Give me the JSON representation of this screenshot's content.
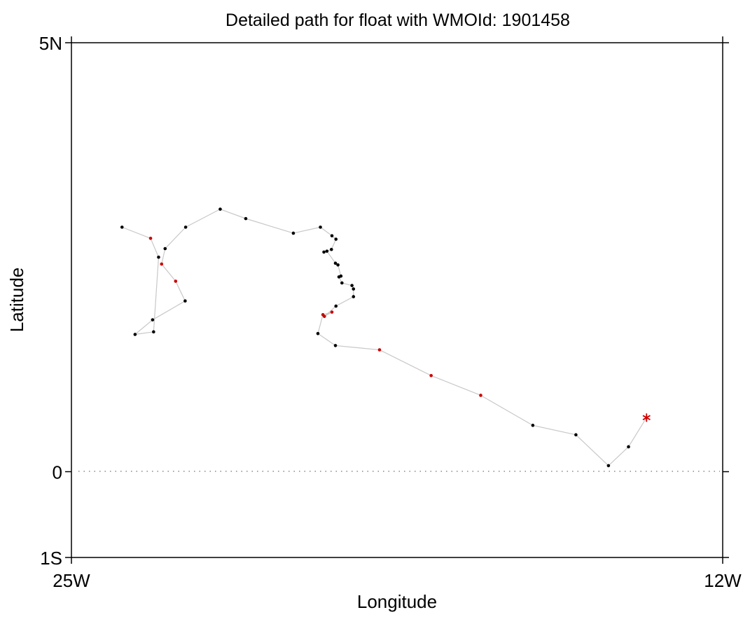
{
  "chart_data": {
    "type": "scatter",
    "title": "Detailed path for float with WMOId: 1901458",
    "xlabel": "Longitude",
    "ylabel": "Latitude",
    "xlim": [
      -25,
      -12
    ],
    "ylim": [
      -1,
      5
    ],
    "x_ticks": [
      {
        "value": -25,
        "label": "25W"
      },
      {
        "value": -12,
        "label": "12W"
      }
    ],
    "y_ticks": [
      {
        "value": 5,
        "label": "5N"
      },
      {
        "value": 0,
        "label": "0"
      },
      {
        "value": -1,
        "label": "1S"
      }
    ],
    "reference_line": {
      "y": 0,
      "style": "dotted"
    },
    "colors": {
      "path_line": "#c8c8c8",
      "profile_point": "#000000",
      "highlight_point": "#cc0000",
      "start_marker": "#cc0000",
      "axes": "#000000",
      "reference_line": "#888888"
    },
    "start_marker": {
      "lon": -13.52,
      "lat": 0.63,
      "symbol": "asterisk"
    },
    "path": [
      {
        "lon": -13.52,
        "lat": 0.63,
        "flag": "start"
      },
      {
        "lon": -13.88,
        "lat": 0.29,
        "flag": "normal"
      },
      {
        "lon": -14.28,
        "lat": 0.07,
        "flag": "normal"
      },
      {
        "lon": -14.93,
        "lat": 0.43,
        "flag": "normal"
      },
      {
        "lon": -15.79,
        "lat": 0.54,
        "flag": "normal"
      },
      {
        "lon": -16.83,
        "lat": 0.89,
        "flag": "highlight"
      },
      {
        "lon": -17.82,
        "lat": 1.12,
        "flag": "highlight"
      },
      {
        "lon": -18.85,
        "lat": 1.42,
        "flag": "highlight"
      },
      {
        "lon": -19.73,
        "lat": 1.47,
        "flag": "normal"
      },
      {
        "lon": -20.08,
        "lat": 1.61,
        "flag": "normal"
      },
      {
        "lon": -19.98,
        "lat": 1.83,
        "flag": "highlight"
      },
      {
        "lon": -19.8,
        "lat": 1.86,
        "flag": "highlight"
      },
      {
        "lon": -19.95,
        "lat": 1.81,
        "flag": "highlight"
      },
      {
        "lon": -19.72,
        "lat": 1.93,
        "flag": "normal"
      },
      {
        "lon": -19.37,
        "lat": 2.04,
        "flag": "normal"
      },
      {
        "lon": -19.37,
        "lat": 2.13,
        "flag": "normal"
      },
      {
        "lon": -19.4,
        "lat": 2.17,
        "flag": "normal"
      },
      {
        "lon": -19.6,
        "lat": 2.2,
        "flag": "normal"
      },
      {
        "lon": -19.66,
        "lat": 2.27,
        "flag": "normal"
      },
      {
        "lon": -19.62,
        "lat": 2.28,
        "flag": "normal"
      },
      {
        "lon": -19.68,
        "lat": 2.41,
        "flag": "normal"
      },
      {
        "lon": -19.73,
        "lat": 2.43,
        "flag": "normal"
      },
      {
        "lon": -19.9,
        "lat": 2.57,
        "flag": "normal"
      },
      {
        "lon": -19.96,
        "lat": 2.56,
        "flag": "normal"
      },
      {
        "lon": -19.81,
        "lat": 2.59,
        "flag": "normal"
      },
      {
        "lon": -19.72,
        "lat": 2.71,
        "flag": "normal"
      },
      {
        "lon": -19.8,
        "lat": 2.75,
        "flag": "normal"
      },
      {
        "lon": -20.03,
        "lat": 2.85,
        "flag": "normal"
      },
      {
        "lon": -20.57,
        "lat": 2.78,
        "flag": "normal"
      },
      {
        "lon": -21.52,
        "lat": 2.95,
        "flag": "normal"
      },
      {
        "lon": -22.03,
        "lat": 3.06,
        "flag": "normal"
      },
      {
        "lon": -22.72,
        "lat": 2.85,
        "flag": "normal"
      },
      {
        "lon": -23.13,
        "lat": 2.6,
        "flag": "normal"
      },
      {
        "lon": -23.2,
        "lat": 2.42,
        "flag": "highlight"
      },
      {
        "lon": -22.92,
        "lat": 2.22,
        "flag": "highlight"
      },
      {
        "lon": -22.73,
        "lat": 1.99,
        "flag": "normal"
      },
      {
        "lon": -23.38,
        "lat": 1.77,
        "flag": "normal"
      },
      {
        "lon": -23.73,
        "lat": 1.6,
        "flag": "normal"
      },
      {
        "lon": -23.36,
        "lat": 1.63,
        "flag": "normal"
      },
      {
        "lon": -23.26,
        "lat": 2.5,
        "flag": "normal"
      },
      {
        "lon": -23.42,
        "lat": 2.72,
        "flag": "highlight"
      },
      {
        "lon": -23.99,
        "lat": 2.85,
        "flag": "normal"
      }
    ]
  }
}
